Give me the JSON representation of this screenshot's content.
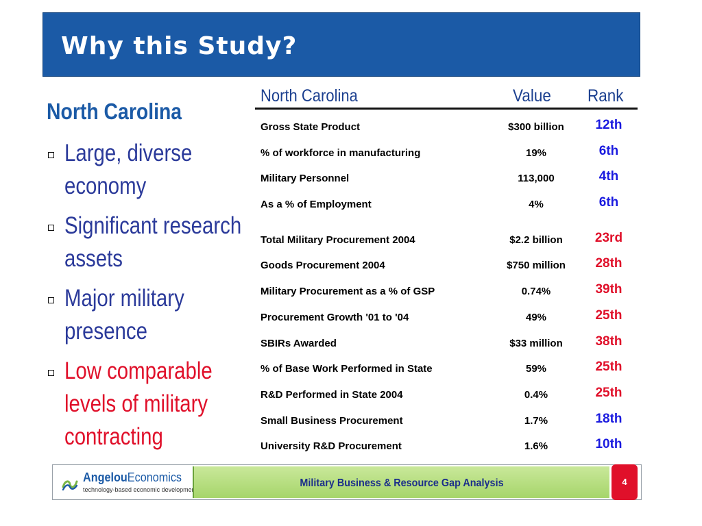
{
  "slide": {
    "title": "Why this Study?"
  },
  "left": {
    "heading": "North Carolina",
    "bullets": [
      {
        "text": "Large, diverse economy",
        "color": "#2b3a9a"
      },
      {
        "text": "Significant research assets",
        "color": "#2b3a9a"
      },
      {
        "text": "Major military presence",
        "color": "#2b3a9a"
      },
      {
        "text": "Low comparable levels of military contracting",
        "color": "#e0102a"
      }
    ]
  },
  "table": {
    "headers": {
      "name": "North Carolina",
      "value": "Value",
      "rank": "Rank"
    },
    "rows": [
      {
        "name": "Gross State Product",
        "value": "$300 billion",
        "rank": "12th",
        "rank_color": "blue"
      },
      {
        "name": "% of workforce in manufacturing",
        "value": "19%",
        "rank": "6th",
        "rank_color": "blue"
      },
      {
        "name": "Military Personnel",
        "value": "113,000",
        "rank": "4th",
        "rank_color": "blue"
      },
      {
        "name": "As a % of Employment",
        "value": "4%",
        "rank": "6th",
        "rank_color": "blue"
      },
      {
        "name": "Total Military Procurement 2004",
        "value": "$2.2 billion",
        "rank": "23rd",
        "rank_color": "red"
      },
      {
        "name": "Goods Procurement 2004",
        "value": "$750 million",
        "rank": "28th",
        "rank_color": "red"
      },
      {
        "name": "Military Procurement as a % of GSP",
        "value": "0.74%",
        "rank": "39th",
        "rank_color": "red"
      },
      {
        "name": "Procurement Growth '01 to '04",
        "value": "49%",
        "rank": "25th",
        "rank_color": "red"
      },
      {
        "name": "SBIRs Awarded",
        "value": "$33 million",
        "rank": "38th",
        "rank_color": "red"
      },
      {
        "name": "% of Base Work Performed in State",
        "value": "59%",
        "rank": "25th",
        "rank_color": "red"
      },
      {
        "name": "R&D Performed in State 2004",
        "value": "0.4%",
        "rank": "25th",
        "rank_color": "red"
      },
      {
        "name": "Small Business Procurement",
        "value": "1.7%",
        "rank": "18th",
        "rank_color": "blue"
      },
      {
        "name": "University R&D Procurement",
        "value": "1.6%",
        "rank": "10th",
        "rank_color": "blue"
      }
    ]
  },
  "footer": {
    "logo_name_strong": "Angelou",
    "logo_name_light": "Economics",
    "logo_tagline": "technology-based economic development",
    "title": "Military Business & Resource Gap Analysis",
    "page_number": "4"
  },
  "colors": {
    "title_bar": "#1b5aa6",
    "rank_blue": "#1a1adf",
    "rank_red": "#e0102a",
    "footer_green": "#a6d56a"
  }
}
